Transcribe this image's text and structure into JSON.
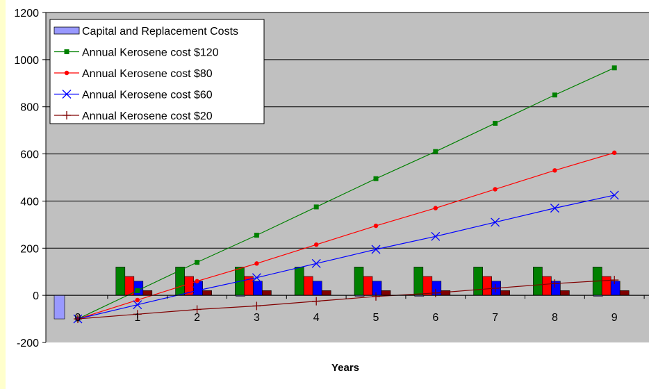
{
  "chart_data": {
    "type": "bar",
    "xlabel": "Years",
    "ylabel": "",
    "ylim": [
      -200,
      1200
    ],
    "yticks": [
      -200,
      0,
      200,
      400,
      600,
      800,
      1000,
      1200
    ],
    "categories": [
      "0",
      "1",
      "2",
      "3",
      "4",
      "5",
      "6",
      "7",
      "8",
      "9"
    ],
    "grid": true,
    "legend_position": "top-left",
    "colors": {
      "plot_area": "#c0c0c0",
      "capital": "#9999ff",
      "k120": "#008000",
      "k80": "#ff0000",
      "k60": "#0000ff",
      "k20": "#800000"
    },
    "bar_series": [
      {
        "name": "Capital and Replacement Costs",
        "values": [
          -100,
          0,
          0,
          -4,
          0,
          -4,
          -4,
          0,
          0,
          -4
        ],
        "color_key": "capital"
      },
      {
        "name": "",
        "values": [
          0,
          120,
          120,
          120,
          120,
          120,
          120,
          120,
          120,
          120
        ],
        "color_key": "k120"
      },
      {
        "name": "",
        "values": [
          0,
          80,
          80,
          80,
          80,
          80,
          80,
          80,
          80,
          80
        ],
        "color_key": "k80"
      },
      {
        "name": "",
        "values": [
          0,
          60,
          60,
          60,
          60,
          60,
          60,
          60,
          60,
          60
        ],
        "color_key": "k60"
      },
      {
        "name": "",
        "values": [
          0,
          20,
          20,
          20,
          20,
          20,
          20,
          20,
          20,
          20
        ],
        "color_key": "k20"
      }
    ],
    "line_series": [
      {
        "name": "Annual Kerosene cost $120",
        "marker": "square",
        "color_key": "k120",
        "values": [
          -100,
          20,
          140,
          255,
          375,
          495,
          610,
          730,
          850,
          965
        ]
      },
      {
        "name": "Annual Kerosene cost $80",
        "marker": "diamond",
        "color_key": "k80",
        "values": [
          -100,
          -20,
          60,
          135,
          215,
          295,
          370,
          450,
          530,
          605
        ]
      },
      {
        "name": "Annual Kerosene cost $60",
        "marker": "x",
        "color_key": "k60",
        "values": [
          -100,
          -40,
          20,
          75,
          135,
          195,
          250,
          310,
          370,
          425
        ]
      },
      {
        "name": "Annual Kerosene cost $20",
        "marker": "plus",
        "color_key": "k20",
        "values": [
          -100,
          -80,
          -60,
          -45,
          -25,
          -5,
          10,
          30,
          50,
          65
        ]
      }
    ]
  }
}
